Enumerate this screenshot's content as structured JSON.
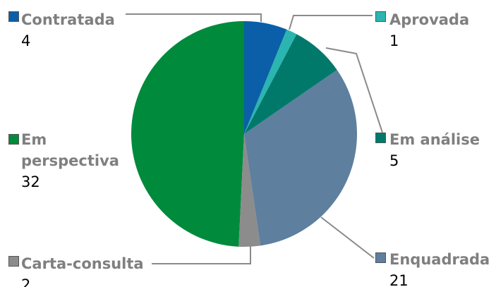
{
  "chart_data": {
    "type": "pie",
    "categories": [
      "Contratada",
      "Aprovada",
      "Em análise",
      "Enquadrada",
      "Carta-consulta",
      "Em perspectiva"
    ],
    "values": [
      4,
      1,
      5,
      21,
      2,
      32
    ],
    "colors": [
      "#0a5fa8",
      "#2bb5b0",
      "#00796b",
      "#5e7f9e",
      "#8c8c8c",
      "#008a3c"
    ]
  }
}
